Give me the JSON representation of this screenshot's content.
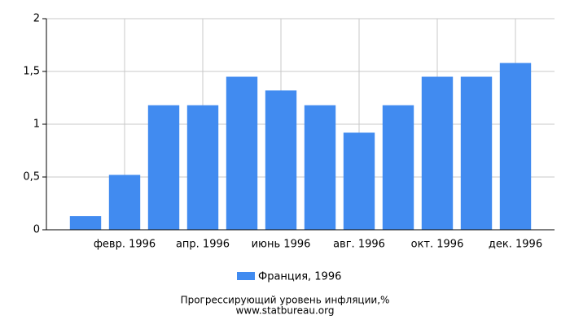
{
  "chart_data": {
    "type": "bar",
    "title": "Прогрессирующий уровень инфляции,%",
    "subtitle": "www.statbureau.org",
    "categories": [
      null,
      "февр. 1996",
      null,
      "апр. 1996",
      null,
      "июнь 1996",
      null,
      "авг. 1996",
      null,
      "окт. 1996",
      null,
      "дек. 1996"
    ],
    "series": [
      {
        "name": "Франция, 1996",
        "color": "#418bf0",
        "values": [
          0.13,
          0.52,
          1.18,
          1.18,
          1.45,
          1.32,
          1.18,
          0.92,
          1.18,
          1.45,
          1.45,
          1.58
        ]
      }
    ],
    "ylim": [
      0,
      2
    ],
    "yticks": [
      0,
      {
        "value": 0.5,
        "label": "0,5"
      },
      1,
      {
        "value": 1.5,
        "label": "1,5"
      },
      2
    ],
    "grid": true
  }
}
